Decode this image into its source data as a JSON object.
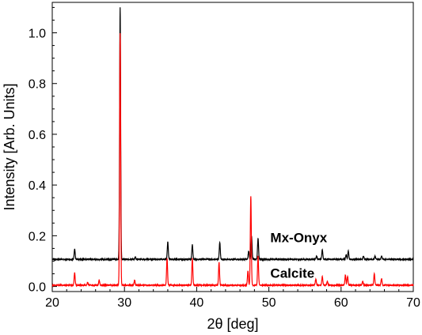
{
  "chart_data": {
    "type": "line",
    "xlabel": "2θ [deg]",
    "ylabel": "Intensity [Arb. Units]",
    "xlim": [
      20,
      70
    ],
    "ylim": [
      -0.02,
      1.12
    ],
    "x_ticks": [
      20,
      30,
      40,
      50,
      60,
      70
    ],
    "y_ticks": [
      0.0,
      0.2,
      0.4,
      0.6,
      0.8,
      1.0
    ],
    "y_tick_labels": [
      "0.0",
      "0.2",
      "0.4",
      "0.6",
      "0.8",
      "1.0"
    ],
    "grid": false,
    "series": [
      {
        "name": "Mx-Onyx",
        "color": "#000000",
        "baseline": 0.107,
        "peaks": [
          {
            "x": 23.1,
            "y": 0.148
          },
          {
            "x": 29.4,
            "y": 1.1
          },
          {
            "x": 31.5,
            "y": 0.115
          },
          {
            "x": 36.0,
            "y": 0.175
          },
          {
            "x": 39.4,
            "y": 0.165
          },
          {
            "x": 43.2,
            "y": 0.175
          },
          {
            "x": 47.2,
            "y": 0.14
          },
          {
            "x": 47.6,
            "y": 0.2
          },
          {
            "x": 48.5,
            "y": 0.19
          },
          {
            "x": 56.6,
            "y": 0.12
          },
          {
            "x": 57.4,
            "y": 0.145
          },
          {
            "x": 60.7,
            "y": 0.125
          },
          {
            "x": 61.0,
            "y": 0.14
          },
          {
            "x": 63.1,
            "y": 0.12
          },
          {
            "x": 64.7,
            "y": 0.12
          },
          {
            "x": 65.6,
            "y": 0.12
          }
        ]
      },
      {
        "name": "Calcite",
        "color": "#ff0000",
        "baseline": 0.005,
        "peaks": [
          {
            "x": 23.1,
            "y": 0.055
          },
          {
            "x": 24.9,
            "y": 0.015
          },
          {
            "x": 26.5,
            "y": 0.025
          },
          {
            "x": 29.4,
            "y": 1.0
          },
          {
            "x": 31.4,
            "y": 0.025
          },
          {
            "x": 35.9,
            "y": 0.11
          },
          {
            "x": 39.4,
            "y": 0.11
          },
          {
            "x": 43.1,
            "y": 0.095
          },
          {
            "x": 47.1,
            "y": 0.06
          },
          {
            "x": 47.5,
            "y": 0.355
          },
          {
            "x": 48.5,
            "y": 0.12
          },
          {
            "x": 56.5,
            "y": 0.03
          },
          {
            "x": 57.4,
            "y": 0.04
          },
          {
            "x": 58.1,
            "y": 0.02
          },
          {
            "x": 60.6,
            "y": 0.045
          },
          {
            "x": 60.9,
            "y": 0.04
          },
          {
            "x": 63.0,
            "y": 0.02
          },
          {
            "x": 64.6,
            "y": 0.05
          },
          {
            "x": 65.6,
            "y": 0.03
          }
        ]
      }
    ]
  }
}
